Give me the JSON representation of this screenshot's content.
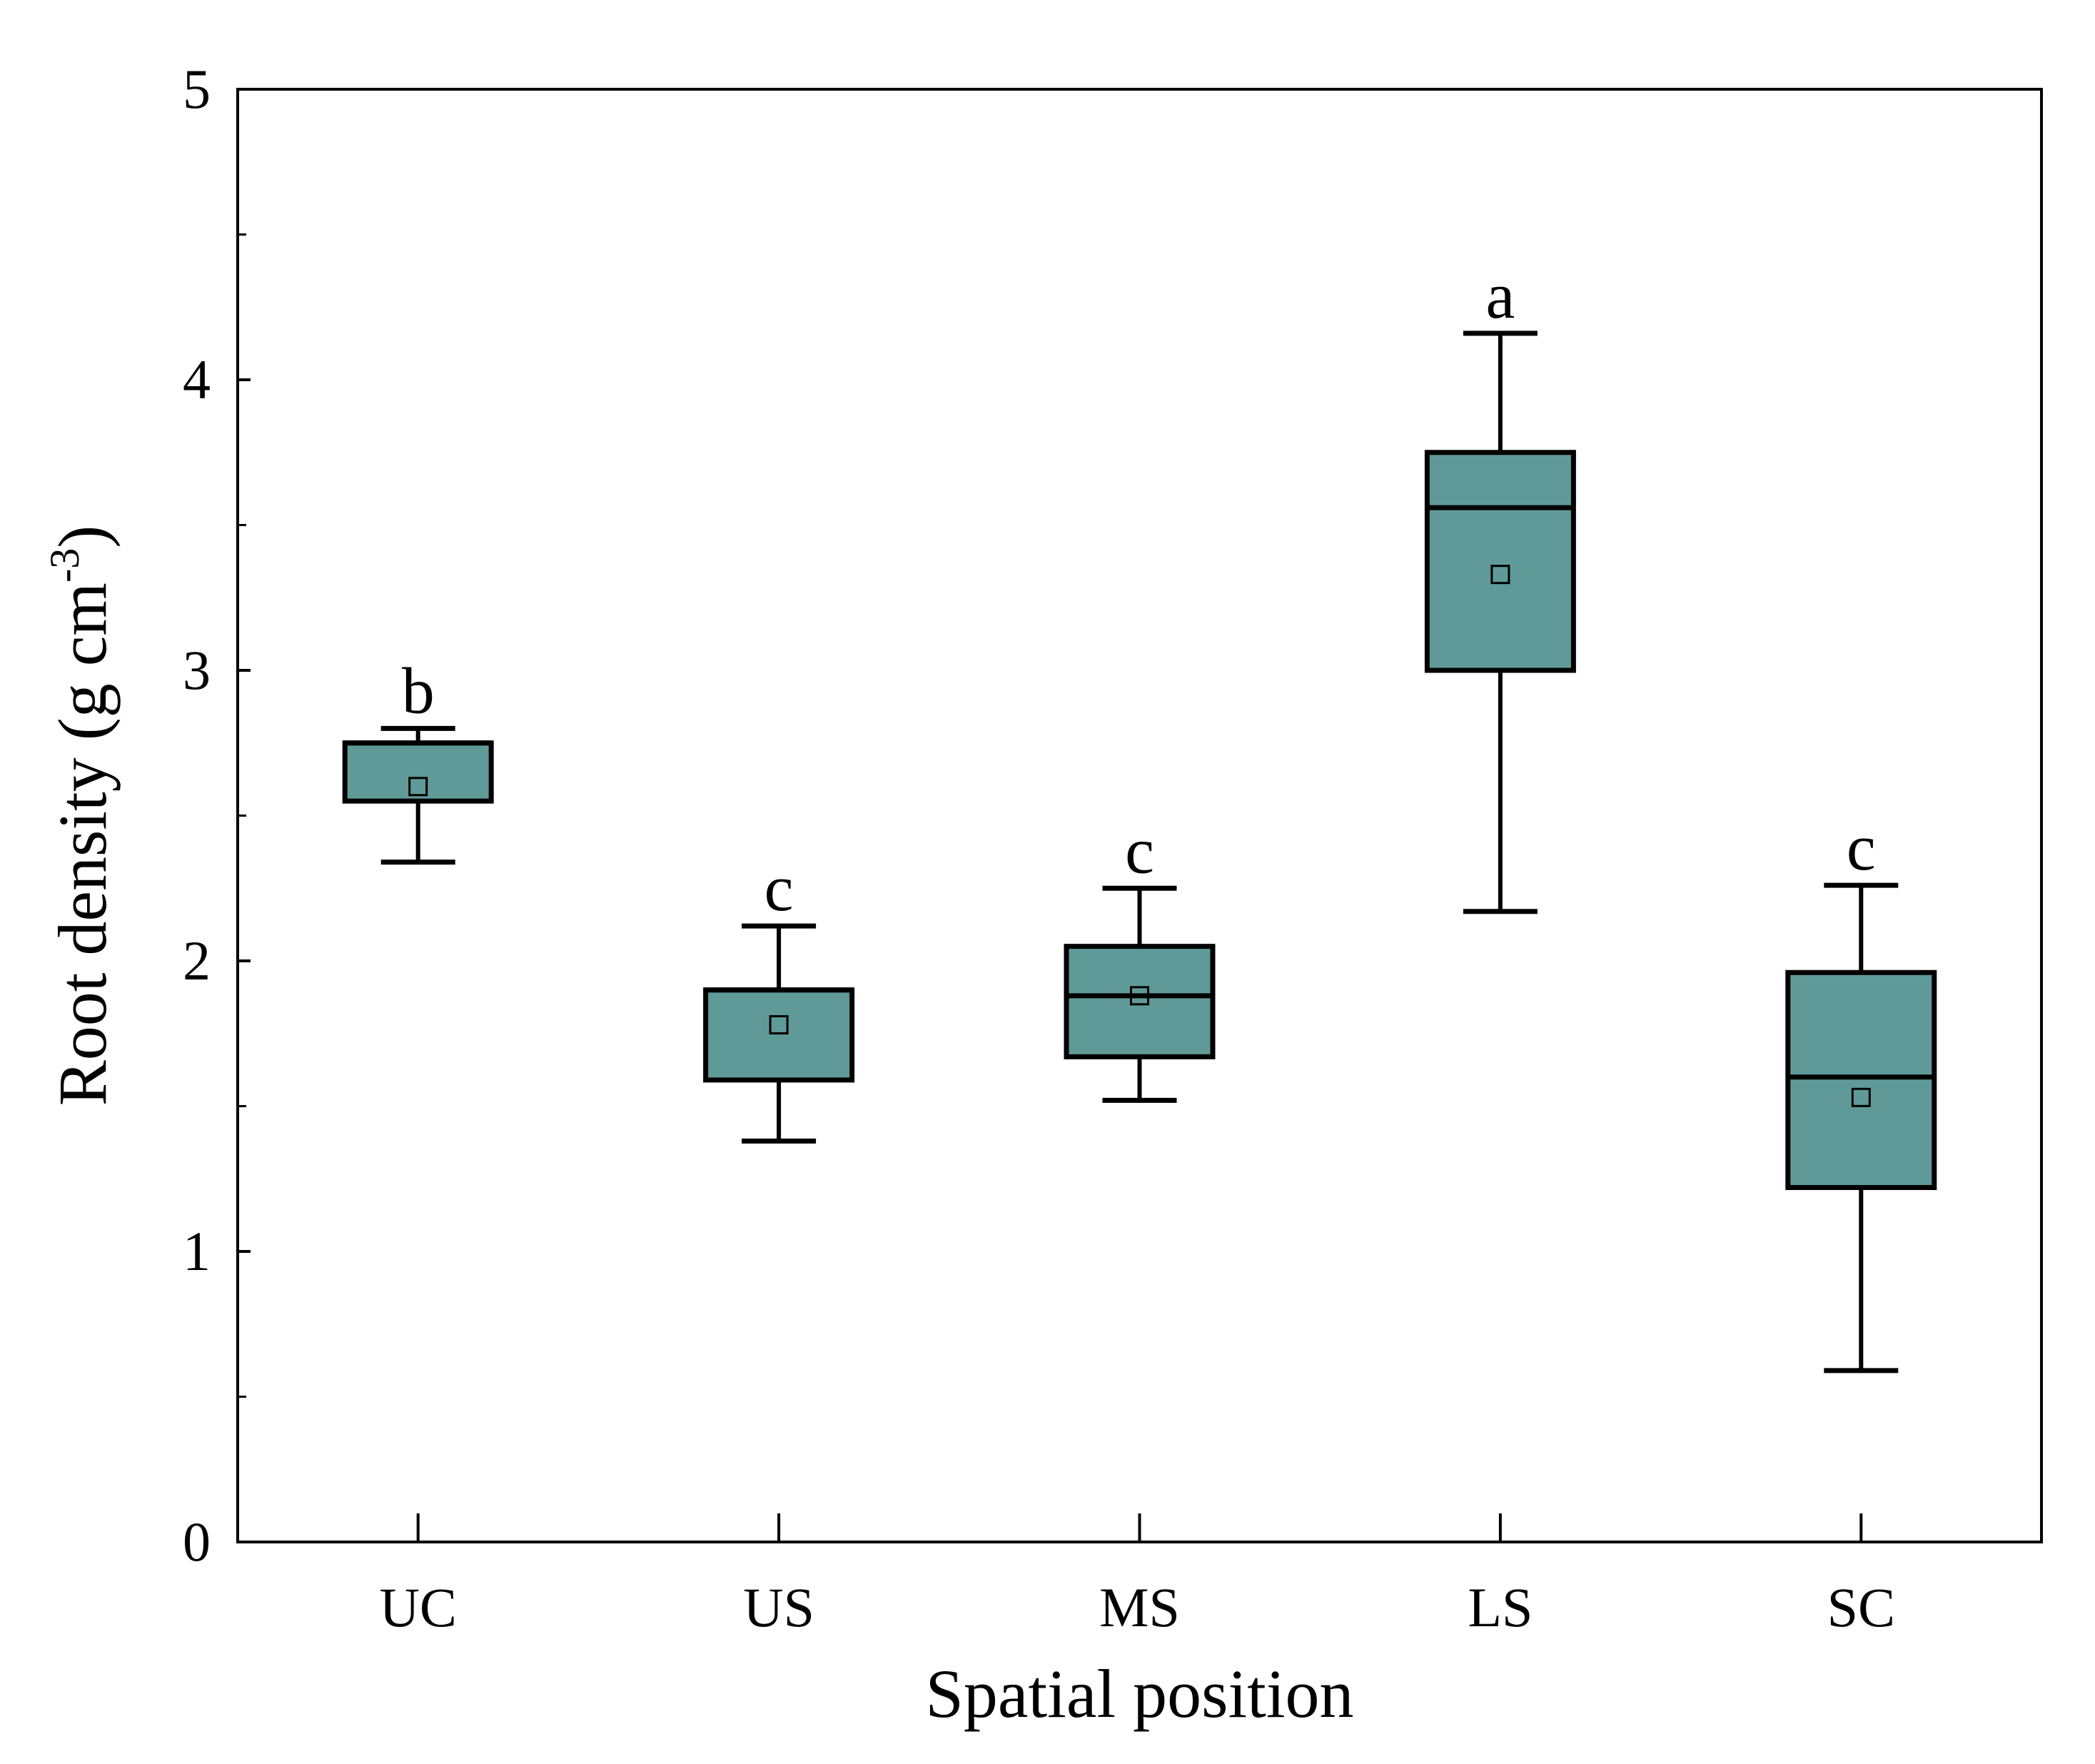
{
  "chart_data": {
    "type": "box",
    "title": "",
    "xlabel": "Spatial position",
    "ylabel": {
      "text": "Root density (g cm",
      "superscript": "-3",
      "suffix": ")"
    },
    "ylim": [
      0,
      5
    ],
    "yticks": [
      0,
      1,
      2,
      3,
      4,
      5
    ],
    "yticks_minor": [
      0.5,
      1.5,
      2.5,
      3.5,
      4.5
    ],
    "ytick_labels": [
      "0",
      "1",
      "2",
      "3",
      "4",
      "5"
    ],
    "categories": [
      "UC",
      "US",
      "MS",
      "LS",
      "SC"
    ],
    "boxes": [
      {
        "category": "UC",
        "whisker_low": 2.34,
        "q1": 2.55,
        "median": 2.75,
        "q3": 2.75,
        "whisker_high": 2.8,
        "mean": 2.6,
        "letter": "b"
      },
      {
        "category": "US",
        "whisker_low": 1.38,
        "q1": 1.59,
        "median": 1.9,
        "q3": 1.9,
        "whisker_high": 2.12,
        "mean": 1.78,
        "letter": "c"
      },
      {
        "category": "MS",
        "whisker_low": 1.52,
        "q1": 1.67,
        "median": 1.88,
        "q3": 2.05,
        "whisker_high": 2.25,
        "mean": 1.88,
        "letter": "c"
      },
      {
        "category": "LS",
        "whisker_low": 2.17,
        "q1": 3.0,
        "median": 3.56,
        "q3": 3.75,
        "whisker_high": 4.16,
        "mean": 3.33,
        "letter": "a"
      },
      {
        "category": "SC",
        "whisker_low": 0.59,
        "q1": 1.22,
        "median": 1.6,
        "q3": 1.96,
        "whisker_high": 2.26,
        "mean": 1.53,
        "letter": "c"
      }
    ],
    "colors": {
      "box_fill": "#5f9a98",
      "stroke": "#000000",
      "background": "#ffffff"
    },
    "grid": false,
    "legend": "none"
  }
}
